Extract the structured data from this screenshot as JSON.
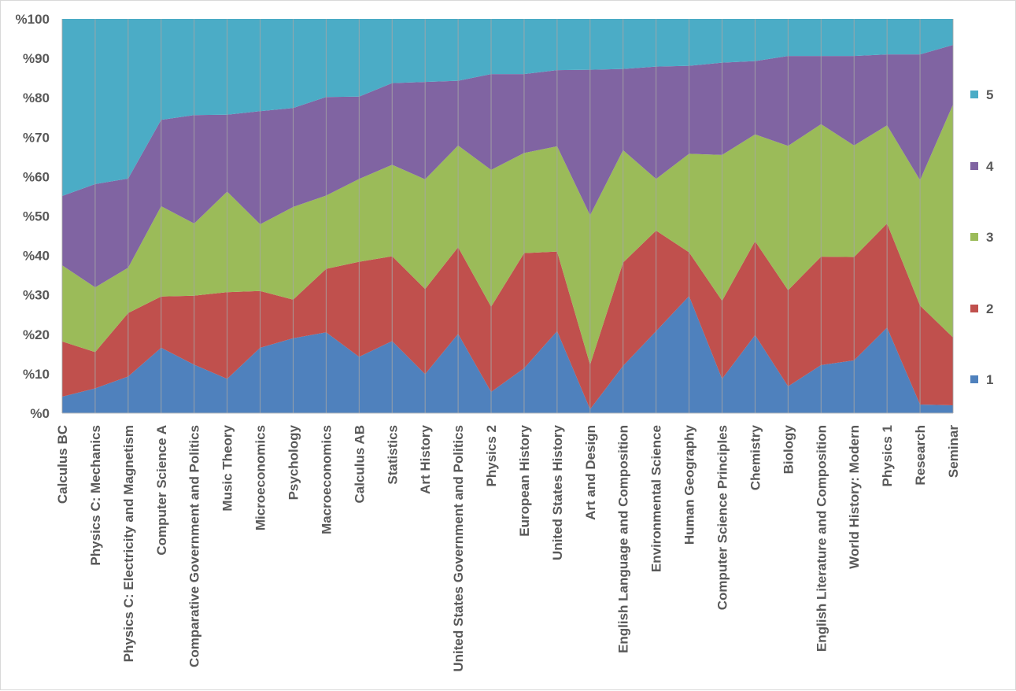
{
  "chart_data": {
    "type": "area",
    "stacked": true,
    "normalized": true,
    "title": "",
    "xlabel": "",
    "ylabel": "",
    "ylim": [
      0,
      100
    ],
    "yticks": [
      0,
      10,
      20,
      30,
      40,
      50,
      60,
      70,
      80,
      90,
      100
    ],
    "ytick_labels": [
      "%0",
      "%10",
      "%20",
      "%30",
      "%40",
      "%50",
      "%60",
      "%70",
      "%80",
      "%90",
      "%100"
    ],
    "grid": "vertical",
    "legend_position": "right",
    "categories": [
      "Calculus BC",
      "Physics C: Mechanics",
      "Physics C: Electricity and Magnetism",
      "Computer Science A",
      "Comparative Government and Politics",
      "Music Theory",
      "Microeconomics",
      "Psychology",
      "Macroeconomics",
      "Calculus AB",
      "Statistics",
      "Art History",
      "United States Government and Politics",
      "Physics 2",
      "European History",
      "United States History",
      "Art and Design",
      "English Language and Composition",
      "Environmental Science",
      "Human Geography",
      "Computer Science Principles",
      "Chemistry",
      "Biology",
      "English Literature and Composition",
      "World History: Modern",
      "Physics 1",
      "Research",
      "Seminar"
    ],
    "series": [
      {
        "name": "1",
        "color": "#4f81bd",
        "values": [
          4.2,
          6.3,
          9.3,
          16.6,
          12.3,
          8.7,
          16.6,
          19.0,
          20.5,
          14.3,
          18.3,
          9.9,
          20.1,
          5.4,
          11.4,
          20.8,
          1.0,
          12.0,
          20.8,
          29.7,
          8.7,
          19.8,
          6.8,
          12.2,
          13.4,
          21.7,
          2.2,
          2.0
        ]
      },
      {
        "name": "2",
        "color": "#c0504d",
        "values": [
          14.0,
          9.2,
          16.1,
          13.0,
          17.5,
          22.0,
          14.4,
          9.8,
          16.1,
          24.1,
          21.5,
          21.6,
          22.0,
          21.6,
          29.2,
          20.2,
          11.3,
          26.2,
          25.5,
          11.1,
          19.8,
          23.8,
          24.4,
          27.5,
          26.2,
          26.4,
          25.1,
          17.2
        ]
      },
      {
        "name": "3",
        "color": "#9bbb59",
        "values": [
          19.3,
          16.4,
          11.5,
          22.9,
          18.3,
          25.5,
          16.9,
          23.5,
          18.6,
          21.0,
          23.2,
          27.8,
          25.8,
          34.7,
          25.4,
          26.7,
          37.9,
          28.5,
          13.1,
          25.0,
          37.0,
          27.1,
          36.6,
          33.6,
          28.3,
          24.9,
          31.8,
          59.1
        ]
      },
      {
        "name": "4",
        "color": "#8064a2",
        "values": [
          17.6,
          26.2,
          22.6,
          21.9,
          27.5,
          19.5,
          28.7,
          25.1,
          25.0,
          20.9,
          20.7,
          24.7,
          16.4,
          24.3,
          20.0,
          19.3,
          36.9,
          20.6,
          28.5,
          22.3,
          23.4,
          18.6,
          22.8,
          17.3,
          22.7,
          18.0,
          31.9,
          15.1
        ]
      },
      {
        "name": "5",
        "color": "#4bacc6",
        "values": [
          44.9,
          41.9,
          40.5,
          25.6,
          24.4,
          24.3,
          23.4,
          22.6,
          19.8,
          19.7,
          16.3,
          16.0,
          15.7,
          14.0,
          14.0,
          13.0,
          12.9,
          12.7,
          12.1,
          11.9,
          11.1,
          10.7,
          9.4,
          9.4,
          9.4,
          9.0,
          9.0,
          6.6
        ]
      }
    ]
  }
}
